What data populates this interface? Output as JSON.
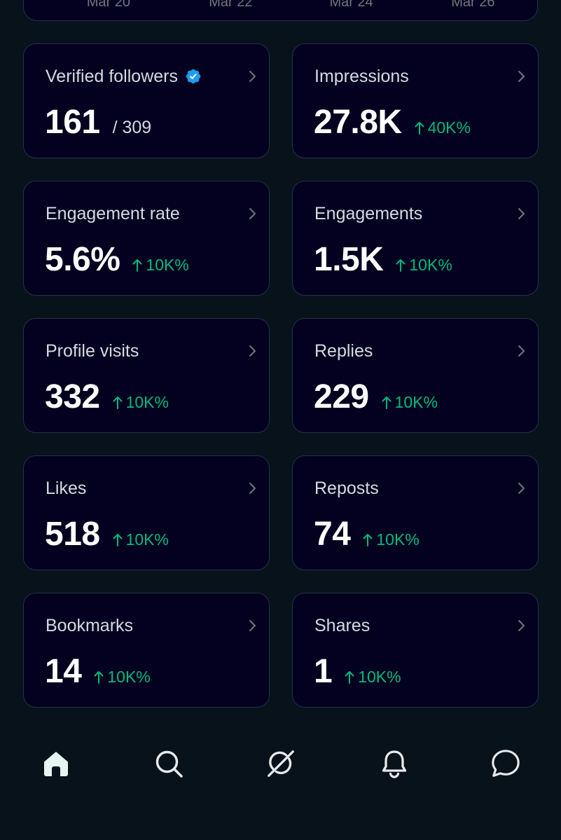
{
  "chart": {
    "x_ticks": [
      "Mar 20",
      "Mar 22",
      "Mar 24",
      "Mar 26"
    ]
  },
  "metrics": [
    {
      "name": "verified-followers",
      "title": "Verified followers",
      "value": "161",
      "denominator": "/ 309",
      "change": "",
      "verified": true
    },
    {
      "name": "impressions",
      "title": "Impressions",
      "value": "27.8K",
      "denominator": "",
      "change": "40K%"
    },
    {
      "name": "engagement-rate",
      "title": "Engagement rate",
      "value": "5.6%",
      "denominator": "",
      "change": "10K%"
    },
    {
      "name": "engagements",
      "title": "Engagements",
      "value": "1.5K",
      "denominator": "",
      "change": "10K%"
    },
    {
      "name": "profile-visits",
      "title": "Profile visits",
      "value": "332",
      "denominator": "",
      "change": "10K%"
    },
    {
      "name": "replies",
      "title": "Replies",
      "value": "229",
      "denominator": "",
      "change": "10K%"
    },
    {
      "name": "likes",
      "title": "Likes",
      "value": "518",
      "denominator": "",
      "change": "10K%"
    },
    {
      "name": "reposts",
      "title": "Reposts",
      "value": "74",
      "denominator": "",
      "change": "10K%"
    },
    {
      "name": "bookmarks",
      "title": "Bookmarks",
      "value": "14",
      "denominator": "",
      "change": "10K%"
    },
    {
      "name": "shares",
      "title": "Shares",
      "value": "1",
      "denominator": "",
      "change": "10K%"
    }
  ],
  "nav": [
    {
      "name": "home",
      "icon": "home-icon",
      "active": true
    },
    {
      "name": "search",
      "icon": "search-icon",
      "active": false
    },
    {
      "name": "grok",
      "icon": "grok-icon",
      "active": false
    },
    {
      "name": "notifications",
      "icon": "bell-icon",
      "active": false
    },
    {
      "name": "messages",
      "icon": "message-icon",
      "active": false
    }
  ],
  "colors": {
    "background": "#07121b",
    "card_background": "#03011f",
    "card_border": "#26324a",
    "positive": "#00ba7c",
    "verified": "#1d9bf0",
    "text_primary": "#ffffff",
    "text_secondary": "#d5dbe1"
  }
}
